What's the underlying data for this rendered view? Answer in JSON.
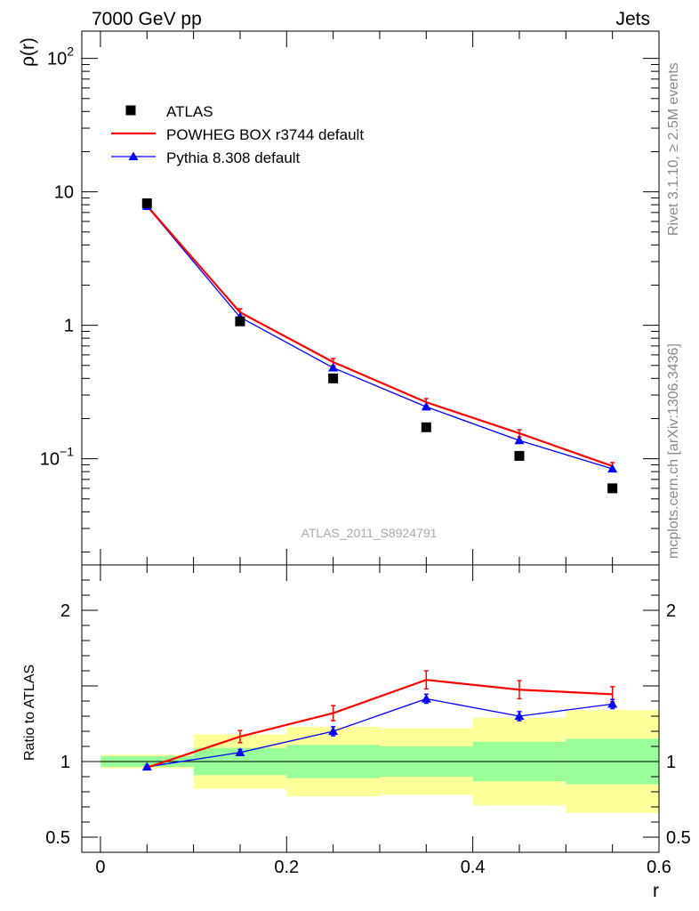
{
  "header": {
    "left": "7000 GeV pp",
    "right": "Jets"
  },
  "side_text": {
    "rivet": "Rivet 3.1.10, ≥ 2.5M events",
    "mcplots": "mcplots.cern.ch [arXiv:1306.3436]"
  },
  "analysis_id": "ATLAS_2011_S8924791",
  "chart_data": [
    {
      "type": "scatter",
      "panel": "main",
      "ylabel": "ρ(r)",
      "xlabel": "",
      "y_scale": "log",
      "xlim": [
        -0.02,
        0.6
      ],
      "ylim": [
        0.016,
        160
      ],
      "y_ticks": [
        {
          "value": 0.1,
          "base": "10",
          "exp": "−1"
        },
        {
          "value": 1,
          "label": "1"
        },
        {
          "value": 10,
          "label": "10"
        },
        {
          "value": 100,
          "base": "10",
          "exp": "2"
        }
      ],
      "legend_position": "top-left",
      "x": [
        0.05,
        0.15,
        0.25,
        0.35,
        0.45,
        0.55
      ],
      "series": [
        {
          "name": "ATLAS",
          "color": "#000000",
          "marker": "square",
          "values": [
            8.2,
            1.07,
            0.4,
            0.172,
            0.105,
            0.06
          ]
        },
        {
          "name": "POWHEG BOX r3744 default",
          "color": "#ff0000",
          "marker": "none",
          "values": [
            7.85,
            1.25,
            0.53,
            0.265,
            0.155,
            0.088
          ]
        },
        {
          "name": "Pythia 8.308 default",
          "color": "#0000ff",
          "marker": "triangle",
          "values": [
            7.8,
            1.15,
            0.48,
            0.245,
            0.137,
            0.084
          ]
        }
      ]
    },
    {
      "type": "line",
      "panel": "ratio",
      "ylabel": "Ratio to ATLAS",
      "xlabel": "r",
      "xlim": [
        -0.02,
        0.6
      ],
      "ylim": [
        0.4,
        2.3
      ],
      "x_ticks": [
        "0",
        "0.2",
        "0.4",
        "0.6"
      ],
      "y_ticks": [
        "0.5",
        "1",
        "2"
      ],
      "bins": [
        [
          0.0,
          0.1
        ],
        [
          0.1,
          0.2
        ],
        [
          0.2,
          0.3
        ],
        [
          0.3,
          0.4
        ],
        [
          0.4,
          0.5
        ],
        [
          0.5,
          0.6
        ]
      ],
      "band_stat": [
        [
          0.965,
          1.035
        ],
        [
          0.91,
          1.09
        ],
        [
          0.89,
          1.11
        ],
        [
          0.9,
          1.1
        ],
        [
          0.87,
          1.13
        ],
        [
          0.85,
          1.15
        ]
      ],
      "band_total": [
        [
          0.955,
          1.045
        ],
        [
          0.82,
          1.18
        ],
        [
          0.77,
          1.23
        ],
        [
          0.78,
          1.22
        ],
        [
          0.71,
          1.29
        ],
        [
          0.66,
          1.34
        ]
      ],
      "x": [
        0.05,
        0.15,
        0.25,
        0.35,
        0.45,
        0.55
      ],
      "series": [
        {
          "name": "POWHEG BOX r3744 default",
          "color": "#ff0000",
          "values": [
            0.96,
            1.165,
            1.32,
            1.54,
            1.475,
            1.445
          ],
          "errors": [
            0.01,
            0.04,
            0.05,
            0.06,
            0.06,
            0.05
          ]
        },
        {
          "name": "Pythia 8.308 default",
          "color": "#0000ff",
          "values": [
            0.965,
            1.06,
            1.2,
            1.415,
            1.3,
            1.38
          ],
          "errors": [
            0.01,
            0.02,
            0.03,
            0.03,
            0.03,
            0.03
          ]
        }
      ]
    }
  ]
}
